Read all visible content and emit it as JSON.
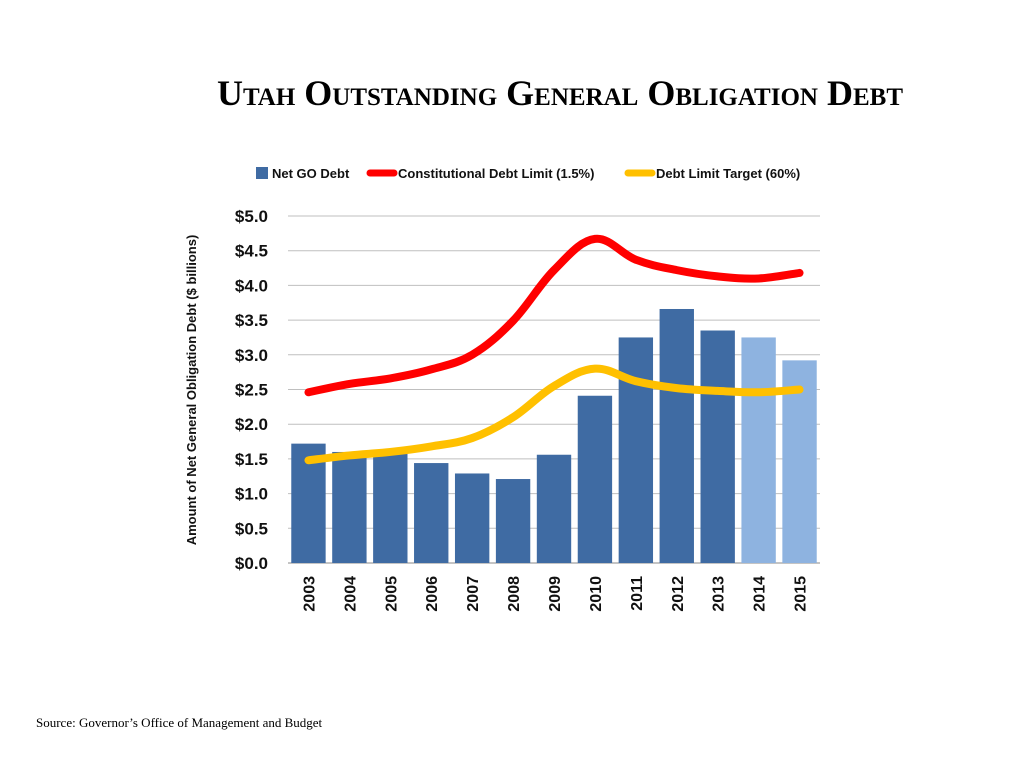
{
  "slide": {
    "title": "Utah Outstanding General Obligation Debt",
    "source": "Source: Governor’s Office of Management and Budget"
  },
  "chart_data": {
    "type": "bar",
    "ylabel": "Amount of Net General Obligation Debt ($ billions)",
    "ylim": [
      0,
      5
    ],
    "y_ticks": [
      "$0.0",
      "$0.5",
      "$1.0",
      "$1.5",
      "$2.0",
      "$2.5",
      "$3.0",
      "$3.5",
      "$4.0",
      "$4.5",
      "$5.0"
    ],
    "grid": true,
    "legend_position": "top",
    "categories": [
      "2003",
      "2004",
      "2005",
      "2006",
      "2007",
      "2008",
      "2009",
      "2010",
      "2011",
      "2012",
      "2013",
      "2014",
      "2015"
    ],
    "series": [
      {
        "name": "Net GO Debt",
        "type": "bar",
        "color": "#3f6ba3",
        "projected_color": "#8eb3e0",
        "projected_from_index": 11,
        "values": [
          1.72,
          1.6,
          1.6,
          1.44,
          1.29,
          1.21,
          1.56,
          2.41,
          3.25,
          3.66,
          3.35,
          3.25,
          2.92
        ]
      },
      {
        "name": "Constitutional Debt Limit (1.5%)",
        "type": "line",
        "color": "#ff0000",
        "values": [
          2.46,
          2.58,
          2.66,
          2.79,
          3.0,
          3.49,
          4.22,
          4.67,
          4.37,
          4.22,
          4.13,
          4.1,
          4.18
        ]
      },
      {
        "name": "Debt Limit Target (60%)",
        "type": "line",
        "color": "#ffc000",
        "values": [
          1.48,
          1.55,
          1.6,
          1.68,
          1.8,
          2.1,
          2.55,
          2.8,
          2.62,
          2.52,
          2.48,
          2.46,
          2.5
        ]
      }
    ]
  }
}
